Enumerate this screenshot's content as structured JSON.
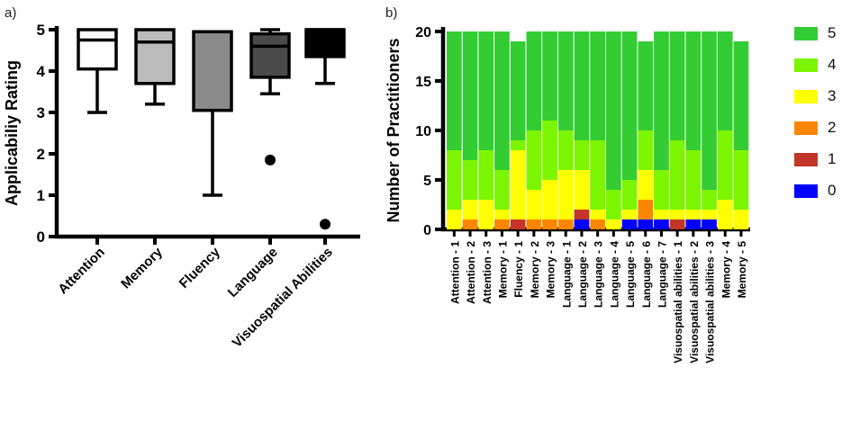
{
  "panel_a": {
    "letter": "a)",
    "ylabel": "Applicabiliy Rating",
    "chart_data": {
      "type": "boxplot",
      "ylim": [
        0,
        5
      ],
      "yticks": [
        0,
        1,
        2,
        3,
        4,
        5
      ],
      "categories": [
        "Attention",
        "Memory",
        "Fluency",
        "Language",
        "Visuospatial Abilities"
      ],
      "boxes": [
        {
          "label": "Attention",
          "q1": 4.05,
          "median": 4.75,
          "q3": 5.0,
          "whisker_low": 3.0,
          "whisker_high": 5.0,
          "outliers": [],
          "fill": "#FFFFFF"
        },
        {
          "label": "Memory",
          "q1": 3.7,
          "median": 4.7,
          "q3": 5.0,
          "whisker_low": 3.2,
          "whisker_high": 5.0,
          "outliers": [],
          "fill": "#BBBBBB"
        },
        {
          "label": "Fluency",
          "q1": 3.05,
          "median": 4.95,
          "q3": 4.95,
          "whisker_low": 1.0,
          "whisker_high": 4.95,
          "outliers": [],
          "fill": "#8A8A8A"
        },
        {
          "label": "Language",
          "q1": 3.85,
          "median": 4.6,
          "q3": 4.9,
          "whisker_low": 3.45,
          "whisker_high": 5.0,
          "outliers": [
            1.85
          ],
          "fill": "#4A4A4A"
        },
        {
          "label": "Visuospatial Abilities",
          "q1": 4.35,
          "median": 5.0,
          "q3": 5.0,
          "whisker_low": 3.7,
          "whisker_high": 5.0,
          "outliers": [
            0.3
          ],
          "fill": "#000000"
        }
      ]
    }
  },
  "panel_b": {
    "letter": "b)",
    "ylabel": "Number of Practitioners",
    "chart_data": {
      "type": "stacked-bar",
      "ylim": [
        0,
        20
      ],
      "yticks": [
        0,
        5,
        10,
        15,
        20
      ],
      "categories": [
        "Attention - 1",
        "Attention - 2",
        "Attention - 3",
        "Memory - 1",
        "Fluency - 1",
        "Memory - 2",
        "Memory - 3",
        "Language - 1",
        "Language - 2",
        "Language - 3",
        "Language - 4",
        "Language - 5",
        "Language - 6",
        "Language - 7",
        "Visuospatial abilities - 1",
        "Visuospatial abilities - 2",
        "Visuospatial abilities - 3",
        "Memory - 4",
        "Memory - 5"
      ],
      "series": [
        {
          "name": "5",
          "color": "#33CC33",
          "values": [
            12,
            13,
            12,
            14,
            10,
            10,
            9,
            10,
            11,
            11,
            16,
            15,
            9,
            14,
            11,
            12,
            16,
            10,
            11
          ]
        },
        {
          "name": "4",
          "color": "#7CF500",
          "values": [
            6,
            4,
            5,
            4,
            1,
            6,
            6,
            4,
            3,
            7,
            3,
            3,
            4,
            4,
            7,
            6,
            2,
            7,
            6
          ]
        },
        {
          "name": "3",
          "color": "#FFFF00",
          "values": [
            2,
            2,
            3,
            1,
            7,
            3,
            4,
            5,
            4,
            1,
            1,
            1,
            3,
            1,
            1,
            1,
            1,
            3,
            2
          ]
        },
        {
          "name": "2",
          "color": "#FC8600",
          "values": [
            0,
            1,
            0,
            1,
            0,
            1,
            1,
            1,
            0,
            1,
            0,
            0,
            2,
            0,
            0,
            0,
            0,
            0,
            0
          ]
        },
        {
          "name": "1",
          "color": "#C23528",
          "values": [
            0,
            0,
            0,
            0,
            1,
            0,
            0,
            0,
            1,
            0,
            0,
            0,
            0,
            0,
            1,
            0,
            0,
            0,
            0
          ]
        },
        {
          "name": "0",
          "color": "#0000FF",
          "values": [
            0,
            0,
            0,
            0,
            0,
            0,
            0,
            0,
            1,
            0,
            0,
            1,
            1,
            1,
            0,
            1,
            1,
            0,
            0
          ]
        }
      ],
      "totals": [
        20,
        20,
        20,
        20,
        19,
        20,
        20,
        20,
        20,
        20,
        20,
        20,
        19,
        20,
        20,
        20,
        20,
        20,
        19
      ],
      "legend_position": "right",
      "legend": [
        {
          "label": "5",
          "color": "#33CC33"
        },
        {
          "label": "4",
          "color": "#7CF500"
        },
        {
          "label": "3",
          "color": "#FFFF00"
        },
        {
          "label": "2",
          "color": "#FC8600"
        },
        {
          "label": "1",
          "color": "#C23528"
        },
        {
          "label": "0",
          "color": "#0000FF"
        }
      ]
    }
  }
}
